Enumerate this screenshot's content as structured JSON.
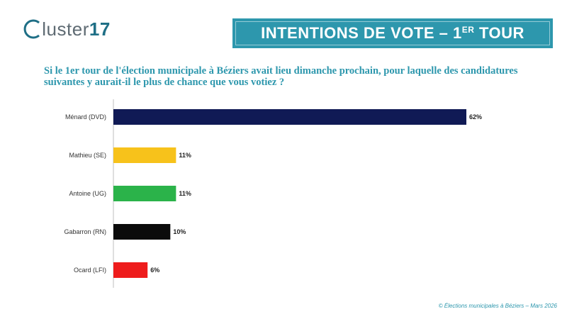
{
  "logo": {
    "prefix": "C",
    "word": "luster",
    "number": "17"
  },
  "title": {
    "main": "INTENTIONS DE VOTE – 1",
    "sup": "ER",
    "end": " TOUR"
  },
  "question": "Si le 1er tour de l'élection municipale à Béziers avait lieu dimanche prochain, pour laquelle des candidatures suivantes y aurait-il le plus de chance que vous votiez ?",
  "footer": "© Élections municipales à Béziers – Mars 2026",
  "colors": {
    "accent": "#2d97ad",
    "logo_grey": "#5f6b73"
  },
  "chart_data": {
    "type": "bar",
    "orientation": "horizontal",
    "categories": [
      "Ménard (DVD)",
      "Mathieu (SE)",
      "Antoine (UG)",
      "Gabarron (RN)",
      "Ocard (LFI)"
    ],
    "values": [
      62,
      11,
      11,
      10,
      6
    ],
    "labels": [
      "62%",
      "11%",
      "11%",
      "10%",
      "6%"
    ],
    "colors": [
      "#101a55",
      "#f7c21b",
      "#2bb34a",
      "#0b0b0b",
      "#ee1c1c"
    ],
    "unit": "%",
    "xlim": [
      0,
      62
    ],
    "title": "",
    "xlabel": "",
    "ylabel": "",
    "grid": false,
    "legend": "none"
  }
}
